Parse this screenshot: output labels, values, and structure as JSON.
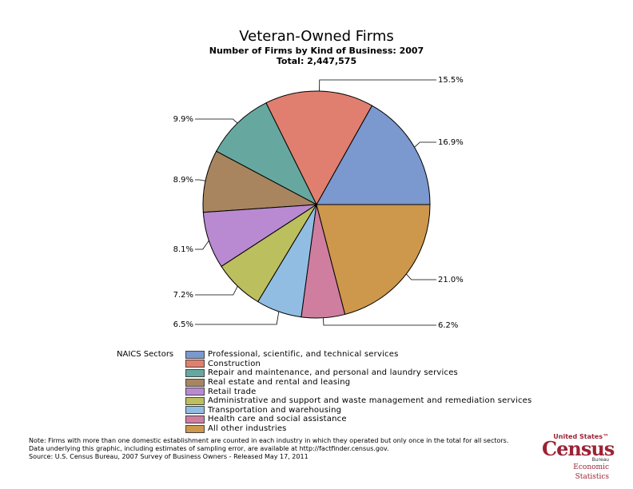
{
  "chart_data": {
    "type": "pie",
    "title": "Veteran-Owned Firms",
    "subtitle": "Number of Firms by Kind of Business: 2007",
    "total_label": "Total: 2,447,575",
    "legend_title": "NAICS Sectors",
    "slices": [
      {
        "name": "Professional, scientific, and technical services",
        "value": 16.9,
        "label": "16.9%",
        "color": "#7b98cf"
      },
      {
        "name": "Construction",
        "value": 15.5,
        "label": "15.5%",
        "color": "#e07f6f"
      },
      {
        "name": "Repair and maintenance, and personal and laundry services",
        "value": 9.9,
        "label": "9.9%",
        "color": "#66a89f"
      },
      {
        "name": "Real estate and rental and leasing",
        "value": 8.9,
        "label": "8.9%",
        "color": "#a8855f"
      },
      {
        "name": "Retail trade",
        "value": 8.1,
        "label": "8.1%",
        "color": "#b98ad1"
      },
      {
        "name": "Administrative and support and waste management and remediation services",
        "value": 7.2,
        "label": "7.2%",
        "color": "#bcbf5e"
      },
      {
        "name": "Transportation and warehousing",
        "value": 6.5,
        "label": "6.5%",
        "color": "#92bde3"
      },
      {
        "name": "Health care and social assistance",
        "value": 6.2,
        "label": "6.2%",
        "color": "#cf7ea0"
      },
      {
        "name": "All other industries",
        "value": 21.0,
        "label": "21.0%",
        "color": "#cd974c"
      }
    ]
  },
  "notes": [
    "Note: Firms with more than one domestic establishment are counted in each industry in which they operated but only once in the total for all sectors.",
    "Data underlying this graphic, including estimates of sampling error, are available at http://factfinder.census.gov.",
    "Source: U.S. Census Bureau, 2007 Survey of Business Owners - Released May 17, 2011"
  ],
  "logo": {
    "top": "United States™",
    "main": "Census",
    "bureau": "Bureau",
    "econ": "Economic Statistics",
    "color": "#9b2335"
  }
}
